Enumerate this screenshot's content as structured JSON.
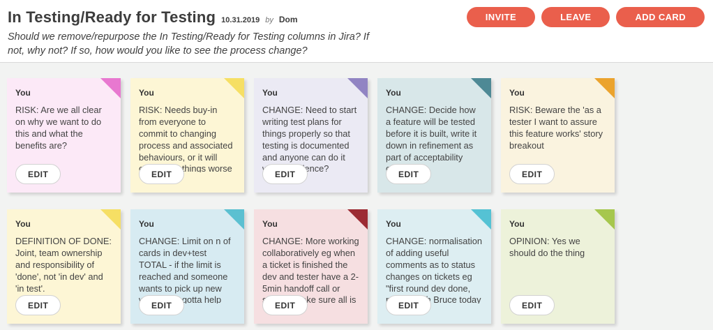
{
  "header": {
    "title": "In Testing/Ready for Testing",
    "date": "10.31.2019",
    "by_label": "by",
    "author": "Dom",
    "description": "Should we remove/repurpose the In Testing/Ready for Testing columns in Jira? If not, why not? If so, how would you like to see the process change?",
    "buttons": {
      "invite": "INVITE",
      "leave": "LEAVE",
      "add_card": "ADD CARD"
    },
    "accent_color": "#ea5f4c"
  },
  "board": {
    "background_color": "#f2f3f2",
    "edit_label": "EDIT",
    "cards": [
      {
        "author": "You",
        "text": "RISK: Are we all clear on why we want to do this and what the benefits are?",
        "bg": "#fce9f7",
        "corner": "#e878d0"
      },
      {
        "author": "You",
        "text": "RISK: Needs buy-in from everyone to commit to changing process and associated behaviours, or it will only make things worse by keeping current state but with less clarity",
        "bg": "#fdf6d5",
        "corner": "#f6df64"
      },
      {
        "author": "You",
        "text": "CHANGE: Need to start writing test plans for things properly so that testing is documented and anyone can do it with confidence?",
        "bg": "#ebeaf4",
        "corner": "#9184c3"
      },
      {
        "author": "You",
        "text": "CHANGE: Decide how a feature will be tested before it is built, write it down in refinement as part of acceptability criteria.",
        "bg": "#d8e7e9",
        "corner": "#4e8995"
      },
      {
        "author": "You",
        "text": "RISK: Beware the 'as a tester I want to assure this feature works' story breakout",
        "bg": "#faf3df",
        "corner": "#eba32d"
      },
      {
        "author": "You",
        "text": "DEFINITION OF DONE: Joint, team ownership and responsibility of 'done', not 'in dev' and 'in test'.",
        "bg": "#fdf6d5",
        "corner": "#f6df64"
      },
      {
        "author": "You",
        "text": "CHANGE: Limit on n of cards in dev+test TOTAL - if the limit is reached and someone wants to pick up new work, they gotta help get what's there through the board first - prevents",
        "bg": "#d7ebf2",
        "corner": "#5bc0d1"
      },
      {
        "author": "You",
        "text": "CHANGE: More working collaboratively eg when a ticket is finished the dev and tester have a 2-5min handoff call or smth to make sure all is chilli",
        "bg": "#f6dfe1",
        "corner": "#9c2b33"
      },
      {
        "author": "You",
        "text": "CHANGE: normalisation of adding useful comments as to status changes on tickets eg \"first round dev done, pairing with Bruce today on checking xyz\"",
        "bg": "#ddeef2",
        "corner": "#55c2d4"
      },
      {
        "author": "You",
        "text": "OPINION: Yes we should do the thing",
        "bg": "#edf2da",
        "corner": "#a6c74d"
      }
    ]
  }
}
